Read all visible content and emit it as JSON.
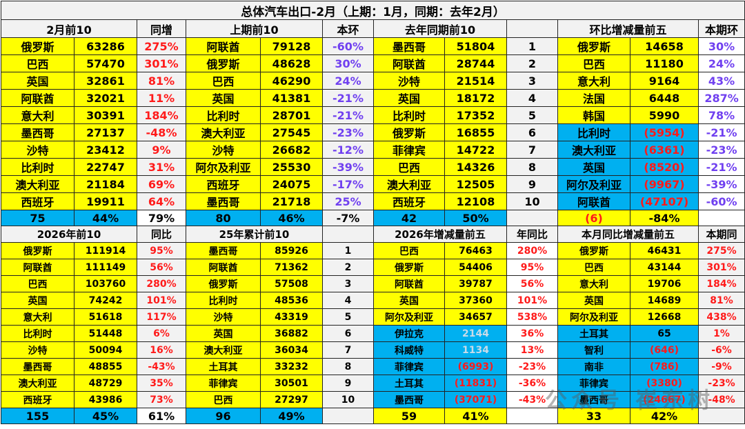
{
  "title": "总体汽车出口-2月（上期：1月，同期：去年2月）",
  "colors": {
    "yellow": "#ffff00",
    "blue": "#00b0f0",
    "header_gray": "#f2f2f2",
    "negative_red": "#ff1a1a",
    "mom_purple": "#7040f0"
  },
  "feb_top10": {
    "header": "2月前10",
    "yoy_header": "同增",
    "rows": [
      {
        "country": "俄罗斯",
        "value": "63286",
        "yoy": "275%"
      },
      {
        "country": "巴西",
        "value": "57470",
        "yoy": "301%"
      },
      {
        "country": "英国",
        "value": "32861",
        "yoy": "81%"
      },
      {
        "country": "阿联酋",
        "value": "32021",
        "yoy": "11%"
      },
      {
        "country": "意大利",
        "value": "30391",
        "yoy": "184%"
      },
      {
        "country": "墨西哥",
        "value": "27137",
        "yoy": "-48%"
      },
      {
        "country": "沙特",
        "value": "23412",
        "yoy": "9%"
      },
      {
        "country": "比利时",
        "value": "22747",
        "yoy": "31%"
      },
      {
        "country": "澳大利亚",
        "value": "21184",
        "yoy": "69%"
      },
      {
        "country": "西班牙",
        "value": "19911",
        "yoy": "64%"
      }
    ],
    "summary": {
      "count": "75",
      "share": "44%",
      "yoy": "79%"
    }
  },
  "prev_top10": {
    "header": "上期前10",
    "mom_header": "本环",
    "rows": [
      {
        "country": "阿联酋",
        "value": "79128",
        "mom": "-60%"
      },
      {
        "country": "俄罗斯",
        "value": "48628",
        "mom": "30%"
      },
      {
        "country": "巴西",
        "value": "46290",
        "mom": "24%"
      },
      {
        "country": "英国",
        "value": "41381",
        "mom": "-21%"
      },
      {
        "country": "比利时",
        "value": "28701",
        "mom": "-21%"
      },
      {
        "country": "澳大利亚",
        "value": "27545",
        "mom": "-23%"
      },
      {
        "country": "沙特",
        "value": "26682",
        "mom": "-12%"
      },
      {
        "country": "阿尔及利亚",
        "value": "25530",
        "mom": "-39%"
      },
      {
        "country": "西班牙",
        "value": "24075",
        "mom": "-17%"
      },
      {
        "country": "墨西哥",
        "value": "21718",
        "mom": "25%"
      }
    ],
    "summary": {
      "count": "80",
      "share": "46%",
      "mom": "-7%"
    }
  },
  "last_year_top10": {
    "header": "去年同期前10",
    "rows": [
      {
        "country": "墨西哥",
        "value": "51804",
        "rank": "1"
      },
      {
        "country": "阿联酋",
        "value": "28744",
        "rank": "2"
      },
      {
        "country": "沙特",
        "value": "21514",
        "rank": "3"
      },
      {
        "country": "英国",
        "value": "18172",
        "rank": "4"
      },
      {
        "country": "比利时",
        "value": "17352",
        "rank": "5"
      },
      {
        "country": "俄罗斯",
        "value": "16855",
        "rank": "6"
      },
      {
        "country": "菲律宾",
        "value": "14722",
        "rank": "7"
      },
      {
        "country": "巴西",
        "value": "14326",
        "rank": "8"
      },
      {
        "country": "澳大利亚",
        "value": "12505",
        "rank": "9"
      },
      {
        "country": "西班牙",
        "value": "12108",
        "rank": "10"
      }
    ],
    "summary": {
      "count": "42",
      "share": "50%"
    }
  },
  "mom_change_top5": {
    "header": "环比增减量前五",
    "rate_header": "本期环",
    "rows": [
      {
        "country": "俄罗斯",
        "change": "14658",
        "rate": "30%"
      },
      {
        "country": "巴西",
        "change": "11180",
        "rate": "24%"
      },
      {
        "country": "意大利",
        "change": "9164",
        "rate": "43%"
      },
      {
        "country": "法国",
        "change": "6448",
        "rate": "287%"
      },
      {
        "country": "韩国",
        "change": "5990",
        "rate": "78%"
      },
      {
        "country": "比利时",
        "change": "(5954)",
        "rate": "-21%"
      },
      {
        "country": "澳大利亚",
        "change": "(6361)",
        "rate": "-23%"
      },
      {
        "country": "英国",
        "change": "(8520)",
        "rate": "-21%"
      },
      {
        "country": "阿尔及利亚",
        "change": "(9967)",
        "rate": "-39%"
      },
      {
        "country": "阿联酋",
        "change": "(47107)",
        "rate": "-60%"
      }
    ],
    "summary": {
      "total": "(6)",
      "rate": "-84%"
    }
  },
  "ytd_2026_top10": {
    "header": "2026年前10",
    "yoy_header": "同比",
    "rows": [
      {
        "country": "俄罗斯",
        "value": "111914",
        "yoy": "95%"
      },
      {
        "country": "阿联酋",
        "value": "111149",
        "yoy": "56%"
      },
      {
        "country": "巴西",
        "value": "103760",
        "yoy": "280%"
      },
      {
        "country": "英国",
        "value": "74242",
        "yoy": "101%"
      },
      {
        "country": "意大利",
        "value": "51618",
        "yoy": "117%"
      },
      {
        "country": "比利时",
        "value": "51448",
        "yoy": "6%"
      },
      {
        "country": "沙特",
        "value": "50094",
        "yoy": "16%"
      },
      {
        "country": "墨西哥",
        "value": "48855",
        "yoy": "-43%"
      },
      {
        "country": "澳大利亚",
        "value": "48729",
        "yoy": "35%"
      },
      {
        "country": "西班牙",
        "value": "43986",
        "yoy": "73%"
      }
    ],
    "summary": {
      "count": "155",
      "share": "45%",
      "yoy": "61%"
    }
  },
  "cum_2025_top10": {
    "header": "25年累计前10",
    "rows": [
      {
        "country": "墨西哥",
        "value": "85926",
        "rank": "1"
      },
      {
        "country": "阿联酋",
        "value": "71362",
        "rank": "2"
      },
      {
        "country": "俄罗斯",
        "value": "57508",
        "rank": "3"
      },
      {
        "country": "比利时",
        "value": "48536",
        "rank": "4"
      },
      {
        "country": "沙特",
        "value": "43319",
        "rank": "5"
      },
      {
        "country": "英国",
        "value": "36882",
        "rank": "6"
      },
      {
        "country": "澳大利亚",
        "value": "36034",
        "rank": "7"
      },
      {
        "country": "土耳其",
        "value": "33232",
        "rank": "8"
      },
      {
        "country": "菲律宾",
        "value": "30501",
        "rank": "9"
      },
      {
        "country": "巴西",
        "value": "27297",
        "rank": "10"
      }
    ],
    "summary": {
      "count": "96",
      "share": "49%"
    }
  },
  "ytd_change_top5": {
    "header": "2026年增减量前五",
    "rate_header": "年同比",
    "rows": [
      {
        "country": "巴西",
        "change": "76463",
        "rate": "280%"
      },
      {
        "country": "俄罗斯",
        "change": "54406",
        "rate": "95%"
      },
      {
        "country": "阿联酋",
        "change": "39787",
        "rate": "56%"
      },
      {
        "country": "英国",
        "change": "37360",
        "rate": "101%"
      },
      {
        "country": "阿尔及利亚",
        "change": "34657",
        "rate": "538%"
      },
      {
        "country": "伊拉克",
        "change": "2144",
        "rate": "36%"
      },
      {
        "country": "科威特",
        "change": "1134",
        "rate": "13%"
      },
      {
        "country": "菲律宾",
        "change": "(6993)",
        "rate": "-23%"
      },
      {
        "country": "土耳其",
        "change": "(11831)",
        "rate": "-36%"
      },
      {
        "country": "墨西哥",
        "change": "(37071)",
        "rate": "-43%"
      }
    ],
    "summary": {
      "total": "59",
      "rate": "41%"
    }
  },
  "month_yoy_change_top5": {
    "header": "本月同比增减量前五",
    "rate_header": "本期同",
    "rows": [
      {
        "country": "俄罗斯",
        "change": "46431",
        "rate": "275%"
      },
      {
        "country": "巴西",
        "change": "43144",
        "rate": "301%"
      },
      {
        "country": "意大利",
        "change": "19706",
        "rate": "184%"
      },
      {
        "country": "英国",
        "change": "14689",
        "rate": "81%"
      },
      {
        "country": "阿尔及利亚",
        "change": "12668",
        "rate": "438%"
      },
      {
        "country": "土耳其",
        "change": "65",
        "rate": "1%"
      },
      {
        "country": "智利",
        "change": "(646)",
        "rate": "-6%"
      },
      {
        "country": "南非",
        "change": "(786)",
        "rate": "-9%"
      },
      {
        "country": "菲律宾",
        "change": "(3380)",
        "rate": "-23%"
      },
      {
        "country": "墨西哥",
        "change": "(24667)",
        "rate": "-48%"
      }
    ],
    "summary": {
      "total": "33",
      "rate": "42%"
    }
  },
  "watermark": "公众号 崔东树"
}
